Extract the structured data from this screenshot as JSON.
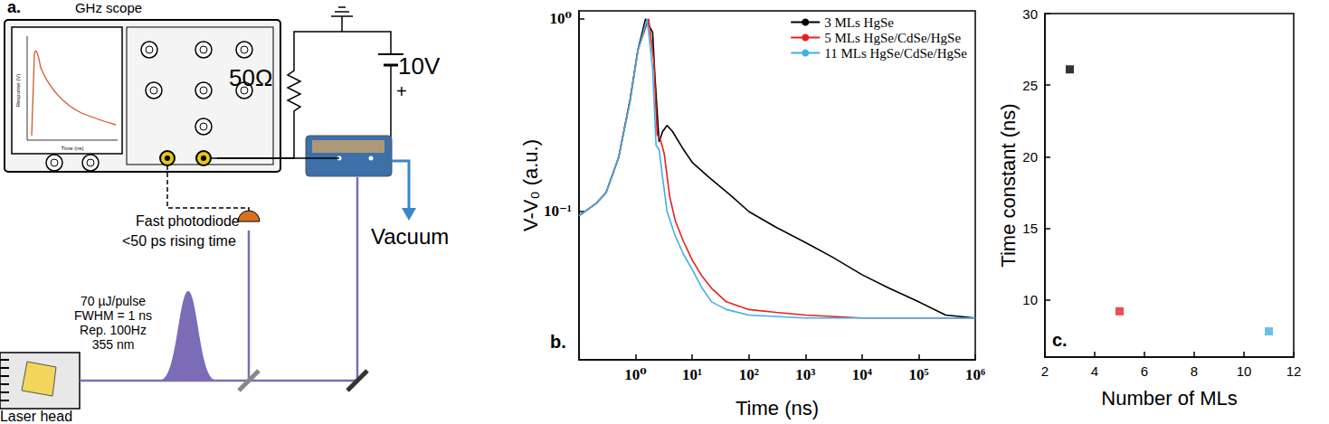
{
  "diagram": {
    "label": "a.",
    "scope": {
      "title": "GHz scope",
      "screen_y_label": "Response (V)",
      "screen_x_label": "Time (ns)"
    },
    "resistor": "50Ω",
    "battery": "10V",
    "battery_sign": "+",
    "vacuum": "Vacuum",
    "photodiode": [
      "Fast photodiode",
      "<50 ps rising time"
    ],
    "laser_specs": [
      "70 µJ/pulse",
      "FWHM = 1 ns",
      "Rep. 100Hz",
      "355 nm"
    ],
    "laser": "Laser head"
  },
  "chart_data": [
    {
      "type": "line",
      "annotations": [
        "b."
      ],
      "x_label": "Time (ns)",
      "y_label": "V-V₀ (a.u.)",
      "log": true,
      "xlim": [
        0.1,
        1000000
      ],
      "ylim": [
        0.017,
        1.1
      ],
      "xticks": [
        {
          "value": 1,
          "label": "10⁰"
        },
        {
          "value": 10,
          "label": "10¹"
        },
        {
          "value": 100,
          "label": "10²"
        },
        {
          "value": 1000,
          "label": "10³"
        },
        {
          "value": 10000,
          "label": "10⁴"
        },
        {
          "value": 100000,
          "label": "10⁵"
        },
        {
          "value": 1000000,
          "label": "10⁶"
        }
      ],
      "yticks": [
        {
          "value": 0.1,
          "label": "10⁻¹"
        },
        {
          "value": 1,
          "label": "10⁰"
        }
      ],
      "legend": "upper right",
      "series": [
        {
          "name": "3 MLs HgSe",
          "color": "#000000",
          "x": [
            0.1,
            0.2,
            0.3,
            0.5,
            0.8,
            1.1,
            1.5,
            2.0,
            2.2,
            2.6,
            3.0,
            3.6,
            4.5,
            7,
            10,
            20,
            50,
            100,
            300,
            1000,
            3000,
            10000,
            30000,
            100000,
            300000,
            1000000
          ],
          "values": [
            0.095,
            0.11,
            0.125,
            0.19,
            0.38,
            0.69,
            1.0,
            0.85,
            0.5,
            0.23,
            0.26,
            0.28,
            0.26,
            0.21,
            0.18,
            0.15,
            0.12,
            0.1,
            0.083,
            0.069,
            0.058,
            0.047,
            0.04,
            0.034,
            0.029,
            0.028
          ]
        },
        {
          "name": "5 MLs HgSe/CdSe/HgSe",
          "color": "#e8201e",
          "x": [
            0.1,
            0.2,
            0.3,
            0.5,
            0.8,
            1.1,
            1.7,
            2.1,
            2.4,
            2.7,
            3.2,
            4,
            5,
            7,
            10,
            15,
            22,
            40,
            100,
            300,
            1000,
            10000,
            100000,
            1000000
          ],
          "values": [
            0.095,
            0.11,
            0.125,
            0.19,
            0.38,
            0.69,
            1.0,
            0.6,
            0.25,
            0.24,
            0.2,
            0.12,
            0.09,
            0.07,
            0.056,
            0.046,
            0.04,
            0.034,
            0.031,
            0.03,
            0.029,
            0.028,
            0.028,
            0.028
          ]
        },
        {
          "name": "11 MLs HgSe/CdSe/HgSe",
          "color": "#3fb1e5",
          "x": [
            0.1,
            0.2,
            0.3,
            0.5,
            0.8,
            1.1,
            1.6,
            2.0,
            2.3,
            2.6,
            3.0,
            3.6,
            5,
            7,
            10,
            15,
            22,
            40,
            100,
            1000,
            100000,
            1000000
          ],
          "values": [
            0.095,
            0.11,
            0.125,
            0.19,
            0.37,
            0.68,
            1.0,
            0.55,
            0.22,
            0.21,
            0.15,
            0.1,
            0.075,
            0.06,
            0.05,
            0.04,
            0.034,
            0.031,
            0.029,
            0.028,
            0.028,
            0.028
          ]
        }
      ]
    },
    {
      "type": "scatter",
      "annotations": [
        "c."
      ],
      "x_label": "Number of MLs",
      "y_label": "Time constant (ns)",
      "xlim": [
        2,
        12
      ],
      "xticks": [
        2,
        4,
        6,
        8,
        10,
        12
      ],
      "ylim": [
        6,
        30
      ],
      "yticks": [
        10,
        15,
        20,
        25,
        30
      ],
      "x": [
        3,
        5,
        11
      ],
      "values": [
        26.1,
        9.2,
        7.8
      ],
      "colors": [
        "#000000",
        "#e8201e",
        "#3fb1e5"
      ],
      "marker": "square"
    }
  ]
}
